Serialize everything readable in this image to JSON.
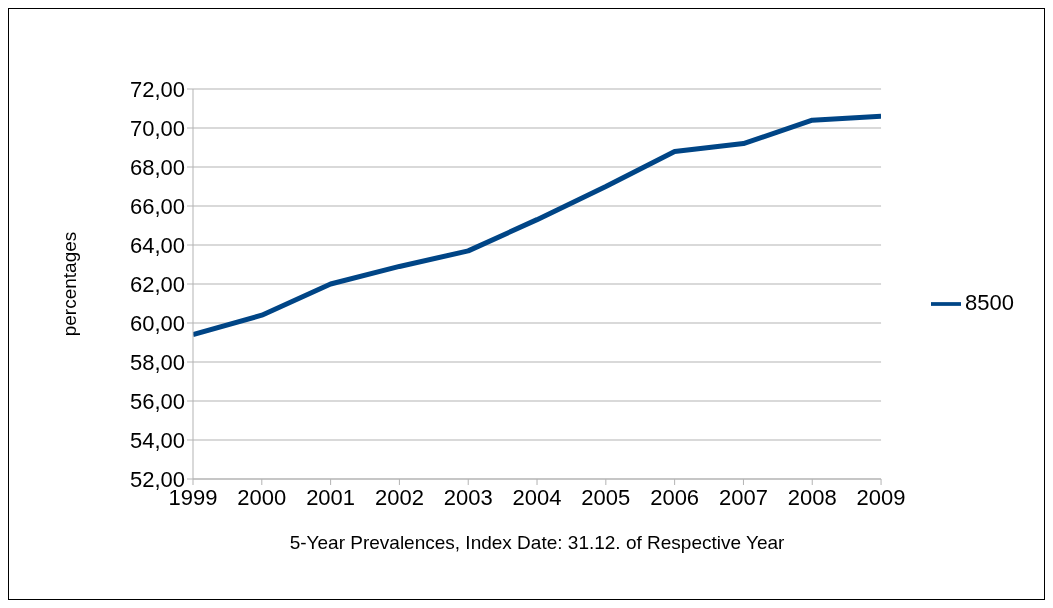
{
  "chart_data": {
    "type": "line",
    "xlabel": "5-Year Prevalences, Index Date: 31.12. of Respective Year",
    "ylabel": "percentages",
    "x": [
      1999,
      2000,
      2001,
      2002,
      2003,
      2004,
      2005,
      2006,
      2007,
      2008,
      2009
    ],
    "series": [
      {
        "name": "8500",
        "color": "#004586",
        "values": [
          59.4,
          60.4,
          62.0,
          62.9,
          63.7,
          65.3,
          67.0,
          68.8,
          69.2,
          70.4,
          70.6
        ]
      }
    ],
    "xlim": [
      1999,
      2009
    ],
    "xticks": [
      1999,
      2000,
      2001,
      2002,
      2003,
      2004,
      2005,
      2006,
      2007,
      2008,
      2009
    ],
    "ylim": [
      52,
      72
    ],
    "yticks": [
      {
        "value": 52,
        "label": "52,00"
      },
      {
        "value": 54,
        "label": "54,00"
      },
      {
        "value": 56,
        "label": "56,00"
      },
      {
        "value": 58,
        "label": "58,00"
      },
      {
        "value": 60,
        "label": "60,00"
      },
      {
        "value": 62,
        "label": "62,00"
      },
      {
        "value": 64,
        "label": "64,00"
      },
      {
        "value": 66,
        "label": "66,00"
      },
      {
        "value": 68,
        "label": "68,00"
      },
      {
        "value": 70,
        "label": "70,00"
      },
      {
        "value": 72,
        "label": "72,00"
      }
    ],
    "grid": "y",
    "legend": "right",
    "marker": "none",
    "line_style": "solid"
  }
}
